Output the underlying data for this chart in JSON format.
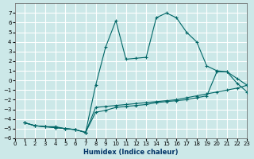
{
  "background_color": "#cce8e8",
  "grid_color": "#ffffff",
  "line_color": "#006666",
  "xlabel": "Humidex (Indice chaleur)",
  "xlim": [
    0,
    23
  ],
  "ylim": [
    -6,
    8
  ],
  "xticks": [
    0,
    1,
    2,
    3,
    4,
    5,
    6,
    7,
    8,
    9,
    10,
    11,
    12,
    13,
    14,
    15,
    16,
    17,
    18,
    19,
    20,
    21,
    22,
    23
  ],
  "yticks": [
    -6,
    -5,
    -4,
    -3,
    -2,
    -1,
    0,
    1,
    2,
    3,
    4,
    5,
    6,
    7
  ],
  "line_top_x": [
    1,
    2,
    3,
    4,
    5,
    6,
    7,
    8,
    9,
    10,
    11,
    12,
    13,
    14,
    15,
    16,
    17,
    18,
    19,
    20,
    21,
    22,
    23
  ],
  "line_top_y": [
    -4.4,
    -4.7,
    -4.8,
    -4.9,
    -5.0,
    -5.1,
    -5.4,
    -0.5,
    3.5,
    6.2,
    2.2,
    2.3,
    2.4,
    6.5,
    7.0,
    6.5,
    5.0,
    4.0,
    1.5,
    1.0,
    0.9,
    -0.3,
    -1.2
  ],
  "line_mid_x": [
    1,
    2,
    3,
    4,
    5,
    6,
    7,
    8,
    9,
    10,
    11,
    12,
    13,
    14,
    15,
    16,
    17,
    18,
    19,
    20,
    21,
    22,
    23
  ],
  "line_mid_y": [
    -4.4,
    -4.7,
    -4.8,
    -4.9,
    -5.0,
    -5.1,
    -5.4,
    -3.3,
    -3.1,
    -2.8,
    -2.7,
    -2.6,
    -2.5,
    -2.3,
    -2.2,
    -2.1,
    -2.0,
    -1.8,
    -1.6,
    0.9,
    0.9,
    0.2,
    -0.5
  ],
  "line_bot_x": [
    1,
    2,
    3,
    4,
    5,
    6,
    7,
    8,
    9,
    10,
    11,
    12,
    13,
    14,
    15,
    16,
    17,
    18,
    19,
    20,
    21,
    22,
    23
  ],
  "line_bot_y": [
    -4.4,
    -4.7,
    -4.8,
    -4.8,
    -5.0,
    -5.1,
    -5.4,
    -2.8,
    -2.7,
    -2.6,
    -2.5,
    -2.4,
    -2.3,
    -2.2,
    -2.1,
    -2.0,
    -1.8,
    -1.6,
    -1.4,
    -1.2,
    -1.0,
    -0.8,
    -0.5
  ]
}
